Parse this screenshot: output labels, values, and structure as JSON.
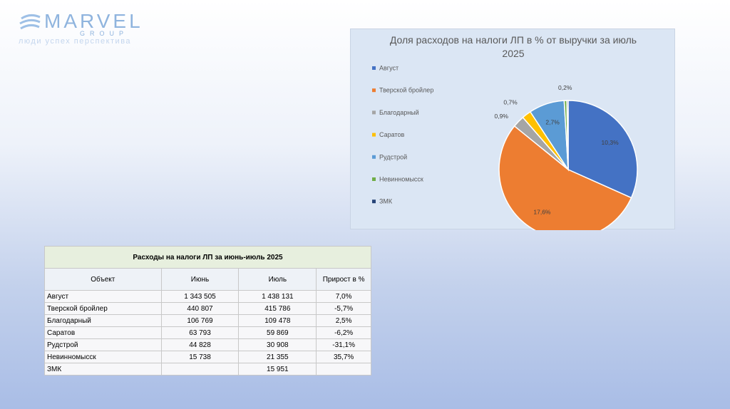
{
  "logo": {
    "word": "MARVEL",
    "group": "GROUP",
    "tagline": "люди успех перспектива"
  },
  "colors": {
    "Август": "#4472c4",
    "Тверской бройлер": "#ed7d31",
    "Благодарный": "#a5a5a5",
    "Саратов": "#ffc000",
    "Рудстрой": "#5b9bd5",
    "Невинномысск": "#70ad47",
    "ЗМК": "#264478"
  },
  "chart_data": {
    "type": "pie",
    "title_line1": "Доля расходов на налоги ЛП в % от выручки за июль",
    "title_line2": "2025",
    "legend_position": "left",
    "categories": [
      "Август",
      "Тверской бройлер",
      "Благодарный",
      "Саратов",
      "Рудстрой",
      "Невинномысск",
      "ЗМК"
    ],
    "values": [
      10.3,
      17.6,
      0.9,
      0.7,
      2.7,
      0.2,
      0.1
    ],
    "data_labels": [
      "10,3%",
      "17,6%",
      "0,9%",
      "0,7%",
      "2,7%",
      "0,2%",
      ""
    ]
  },
  "table": {
    "title": "Расходы на налоги ЛП за июнь-июль 2025",
    "headers": [
      "Объект",
      "Июнь",
      "Июль",
      "Прирост в %"
    ],
    "rows": [
      [
        "Август",
        "1 343 505",
        "1 438 131",
        "7,0%"
      ],
      [
        "Тверской бройлер",
        "440 807",
        "415 786",
        "-5,7%"
      ],
      [
        "Благодарный",
        "106 769",
        "109 478",
        "2,5%"
      ],
      [
        "Саратов",
        "63 793",
        "59 869",
        "-6,2%"
      ],
      [
        "Рудстрой",
        "44 828",
        "30 908",
        "-31,1%"
      ],
      [
        "Невинномысск",
        "15 738",
        "21 355",
        "35,7%"
      ],
      [
        "ЗМК",
        "",
        "15 951",
        ""
      ]
    ]
  }
}
